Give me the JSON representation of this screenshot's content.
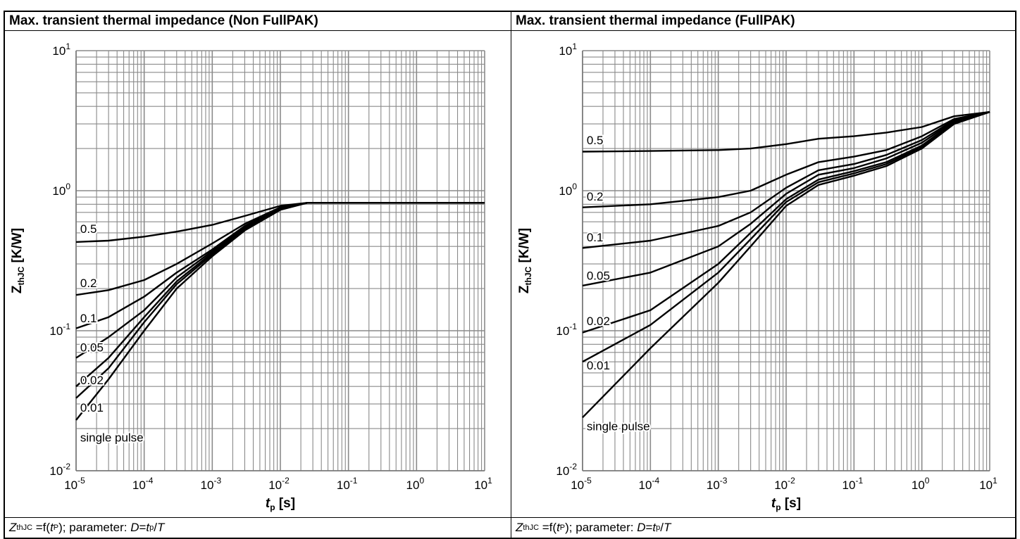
{
  "panels": [
    {
      "title": "Max. transient thermal impedance (Non FullPAK)",
      "footer": {
        "z_main": "Z",
        "z_sub": "thJC",
        "mid": " =f(",
        "t": "t",
        "t_sub": "P",
        "after": "); parameter: ",
        "d": "D",
        "eq": "=",
        "t2": "t",
        "t2_sub": "p",
        "slash": "/",
        "T": "T"
      }
    },
    {
      "title": "Max. transient thermal impedance (FullPAK)",
      "footer": {
        "z_main": "Z",
        "z_sub": "thJC",
        "mid": " =f(",
        "t": "t",
        "t_sub": "P",
        "after": "); parameter: ",
        "d": "D",
        "eq": "=",
        "t2": "t",
        "t2_sub": "p",
        "slash": "/",
        "T": "T"
      }
    }
  ],
  "chart_data": [
    {
      "type": "line",
      "title": "Max. transient thermal impedance (Non FullPAK)",
      "xscale": "log",
      "yscale": "log",
      "xlim": [
        1e-05,
        10
      ],
      "ylim": [
        0.01,
        10
      ],
      "grid": true,
      "xlabel": {
        "main": "t",
        "sub": "p",
        "unit": " [s]"
      },
      "ylabel": {
        "main": "Z",
        "sub": "thJC",
        "unit": " [K/W]"
      },
      "xticks": [
        {
          "base": "10",
          "exp": "-5"
        },
        {
          "base": "10",
          "exp": "-4"
        },
        {
          "base": "10",
          "exp": "-3"
        },
        {
          "base": "10",
          "exp": "-2"
        },
        {
          "base": "10",
          "exp": "-1"
        },
        {
          "base": "10",
          "exp": "0"
        },
        {
          "base": "10",
          "exp": "1"
        }
      ],
      "yticks": [
        {
          "base": "10",
          "exp": "-2"
        },
        {
          "base": "10",
          "exp": "-1"
        },
        {
          "base": "10",
          "exp": "0"
        },
        {
          "base": "10",
          "exp": "1"
        }
      ],
      "series": [
        {
          "name": "0.5",
          "label_x": 1.15e-05,
          "label_y": 0.5,
          "points": [
            [
              1e-05,
              0.43
            ],
            [
              3e-05,
              0.44
            ],
            [
              0.0001,
              0.47
            ],
            [
              0.0003,
              0.51
            ],
            [
              0.001,
              0.57
            ],
            [
              0.003,
              0.66
            ],
            [
              0.01,
              0.78
            ],
            [
              0.025,
              0.82
            ],
            [
              10,
              0.82
            ]
          ]
        },
        {
          "name": "0.2",
          "label_x": 1.15e-05,
          "label_y": 0.205,
          "points": [
            [
              1e-05,
              0.18
            ],
            [
              3e-05,
              0.195
            ],
            [
              0.0001,
              0.23
            ],
            [
              0.0003,
              0.3
            ],
            [
              0.001,
              0.42
            ],
            [
              0.003,
              0.58
            ],
            [
              0.01,
              0.76
            ],
            [
              0.025,
              0.82
            ],
            [
              10,
              0.82
            ]
          ]
        },
        {
          "name": "0.1",
          "label_x": 1.15e-05,
          "label_y": 0.115,
          "points": [
            [
              1e-05,
              0.104
            ],
            [
              3e-05,
              0.125
            ],
            [
              0.0001,
              0.175
            ],
            [
              0.0003,
              0.26
            ],
            [
              0.001,
              0.38
            ],
            [
              0.003,
              0.56
            ],
            [
              0.01,
              0.76
            ],
            [
              0.025,
              0.82
            ],
            [
              10,
              0.82
            ]
          ]
        },
        {
          "name": "0.05",
          "label_x": 1.15e-05,
          "label_y": 0.071,
          "points": [
            [
              1e-05,
              0.064
            ],
            [
              3e-05,
              0.09
            ],
            [
              0.0001,
              0.14
            ],
            [
              0.0003,
              0.24
            ],
            [
              0.001,
              0.37
            ],
            [
              0.003,
              0.55
            ],
            [
              0.01,
              0.75
            ],
            [
              0.025,
              0.82
            ],
            [
              10,
              0.82
            ]
          ]
        },
        {
          "name": "0.02",
          "label_x": 1.15e-05,
          "label_y": 0.0415,
          "points": [
            [
              1e-05,
              0.04
            ],
            [
              3e-05,
              0.064
            ],
            [
              0.0001,
              0.125
            ],
            [
              0.0003,
              0.225
            ],
            [
              0.001,
              0.36
            ],
            [
              0.003,
              0.54
            ],
            [
              0.01,
              0.75
            ],
            [
              0.025,
              0.82
            ],
            [
              10,
              0.82
            ]
          ]
        },
        {
          "name": "0.01",
          "label_x": 1.15e-05,
          "label_y": 0.0265,
          "points": [
            [
              1e-05,
              0.033
            ],
            [
              3e-05,
              0.054
            ],
            [
              0.0001,
              0.115
            ],
            [
              0.0003,
              0.215
            ],
            [
              0.001,
              0.35
            ],
            [
              0.003,
              0.53
            ],
            [
              0.01,
              0.74
            ],
            [
              0.025,
              0.82
            ],
            [
              10,
              0.82
            ]
          ]
        },
        {
          "name": "single pulse",
          "label_x": 1.15e-05,
          "label_y": 0.0162,
          "points": [
            [
              1e-05,
              0.023
            ],
            [
              3e-05,
              0.045
            ],
            [
              0.0001,
              0.1
            ],
            [
              0.0003,
              0.2
            ],
            [
              0.001,
              0.34
            ],
            [
              0.003,
              0.52
            ],
            [
              0.01,
              0.73
            ],
            [
              0.025,
              0.82
            ],
            [
              10,
              0.82
            ]
          ]
        }
      ]
    },
    {
      "type": "line",
      "title": "Max. transient thermal impedance (FullPAK)",
      "xscale": "log",
      "yscale": "log",
      "xlim": [
        1e-05,
        10
      ],
      "ylim": [
        0.01,
        10
      ],
      "grid": true,
      "xlabel": {
        "main": "t",
        "sub": "p",
        "unit": " [s]"
      },
      "ylabel": {
        "main": "Z",
        "sub": "thJC",
        "unit": " [K/W]"
      },
      "xticks": [
        {
          "base": "10",
          "exp": "-5"
        },
        {
          "base": "10",
          "exp": "-4"
        },
        {
          "base": "10",
          "exp": "-3"
        },
        {
          "base": "10",
          "exp": "-2"
        },
        {
          "base": "10",
          "exp": "-1"
        },
        {
          "base": "10",
          "exp": "0"
        },
        {
          "base": "10",
          "exp": "1"
        }
      ],
      "yticks": [
        {
          "base": "10",
          "exp": "-2"
        },
        {
          "base": "10",
          "exp": "-1"
        },
        {
          "base": "10",
          "exp": "0"
        },
        {
          "base": "10",
          "exp": "1"
        }
      ],
      "series": [
        {
          "name": "0.5",
          "label_x": 1.15e-05,
          "label_y": 2.15,
          "points": [
            [
              1e-05,
              1.9
            ],
            [
              0.0001,
              1.92
            ],
            [
              0.001,
              1.95
            ],
            [
              0.003,
              2.0
            ],
            [
              0.01,
              2.15
            ],
            [
              0.03,
              2.35
            ],
            [
              0.1,
              2.45
            ],
            [
              0.3,
              2.6
            ],
            [
              1,
              2.85
            ],
            [
              3,
              3.4
            ],
            [
              10,
              3.65
            ]
          ]
        },
        {
          "name": "0.2",
          "label_x": 1.15e-05,
          "label_y": 0.85,
          "points": [
            [
              1e-05,
              0.76
            ],
            [
              0.0001,
              0.8
            ],
            [
              0.001,
              0.9
            ],
            [
              0.003,
              1.0
            ],
            [
              0.01,
              1.3
            ],
            [
              0.03,
              1.6
            ],
            [
              0.1,
              1.75
            ],
            [
              0.3,
              1.95
            ],
            [
              1,
              2.45
            ],
            [
              3,
              3.25
            ],
            [
              10,
              3.65
            ]
          ]
        },
        {
          "name": "0.1",
          "label_x": 1.15e-05,
          "label_y": 0.435,
          "points": [
            [
              1e-05,
              0.39
            ],
            [
              0.0001,
              0.44
            ],
            [
              0.001,
              0.56
            ],
            [
              0.003,
              0.7
            ],
            [
              0.01,
              1.05
            ],
            [
              0.03,
              1.4
            ],
            [
              0.1,
              1.55
            ],
            [
              0.3,
              1.8
            ],
            [
              1,
              2.3
            ],
            [
              3,
              3.2
            ],
            [
              10,
              3.65
            ]
          ]
        },
        {
          "name": "0.05",
          "label_x": 1.15e-05,
          "label_y": 0.232,
          "points": [
            [
              1e-05,
              0.21
            ],
            [
              0.0001,
              0.26
            ],
            [
              0.001,
              0.4
            ],
            [
              0.003,
              0.58
            ],
            [
              0.01,
              0.95
            ],
            [
              0.03,
              1.3
            ],
            [
              0.1,
              1.45
            ],
            [
              0.3,
              1.7
            ],
            [
              1,
              2.2
            ],
            [
              3,
              3.15
            ],
            [
              10,
              3.65
            ]
          ]
        },
        {
          "name": "0.02",
          "label_x": 1.15e-05,
          "label_y": 0.11,
          "points": [
            [
              1e-05,
              0.097
            ],
            [
              0.0001,
              0.14
            ],
            [
              0.001,
              0.3
            ],
            [
              0.003,
              0.5
            ],
            [
              0.01,
              0.87
            ],
            [
              0.03,
              1.2
            ],
            [
              0.1,
              1.38
            ],
            [
              0.3,
              1.6
            ],
            [
              1,
              2.1
            ],
            [
              3,
              3.1
            ],
            [
              10,
              3.65
            ]
          ]
        },
        {
          "name": "0.01",
          "label_x": 1.15e-05,
          "label_y": 0.053,
          "points": [
            [
              1e-05,
              0.06
            ],
            [
              0.0001,
              0.11
            ],
            [
              0.001,
              0.26
            ],
            [
              0.003,
              0.45
            ],
            [
              0.01,
              0.83
            ],
            [
              0.03,
              1.15
            ],
            [
              0.1,
              1.33
            ],
            [
              0.3,
              1.55
            ],
            [
              1,
              2.05
            ],
            [
              3,
              3.05
            ],
            [
              10,
              3.65
            ]
          ]
        },
        {
          "name": "single pulse",
          "label_x": 1.15e-05,
          "label_y": 0.0195,
          "points": [
            [
              1e-05,
              0.024
            ],
            [
              0.0001,
              0.075
            ],
            [
              0.001,
              0.22
            ],
            [
              0.003,
              0.4
            ],
            [
              0.01,
              0.78
            ],
            [
              0.03,
              1.1
            ],
            [
              0.1,
              1.28
            ],
            [
              0.3,
              1.5
            ],
            [
              1,
              2.0
            ],
            [
              3,
              3.0
            ],
            [
              10,
              3.65
            ]
          ]
        }
      ]
    }
  ]
}
